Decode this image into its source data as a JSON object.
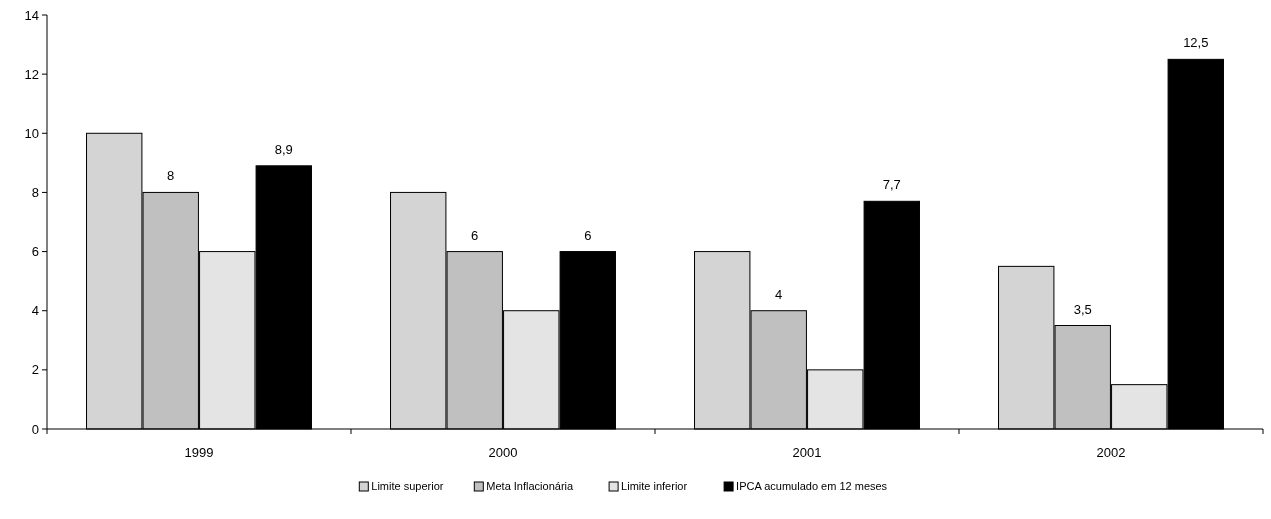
{
  "chart_data": {
    "type": "bar",
    "categories": [
      "1999",
      "2000",
      "2001",
      "2002"
    ],
    "series": [
      {
        "name": "Limite superior",
        "color": "#d4d4d4",
        "values": [
          10,
          8,
          6,
          5.5
        ]
      },
      {
        "name": "Meta Inflacionária",
        "color": "#c0c0c0",
        "values": [
          8,
          6,
          4,
          3.5
        ],
        "value_labels": [
          "8",
          "6",
          "4",
          "3,5"
        ]
      },
      {
        "name": "Limite inferior",
        "color": "#e4e4e4",
        "values": [
          6,
          4,
          2,
          1.5
        ]
      },
      {
        "name": "IPCA acumulado em 12 meses",
        "color": "#000000",
        "values": [
          8.9,
          6,
          7.7,
          12.5
        ],
        "value_labels": [
          "8,9",
          "6",
          "7,7",
          "12,5"
        ]
      }
    ],
    "ylim": [
      0,
      14
    ],
    "yticks": [
      0,
      2,
      4,
      6,
      8,
      10,
      12,
      14
    ],
    "grid": false,
    "legend": "bottom"
  }
}
